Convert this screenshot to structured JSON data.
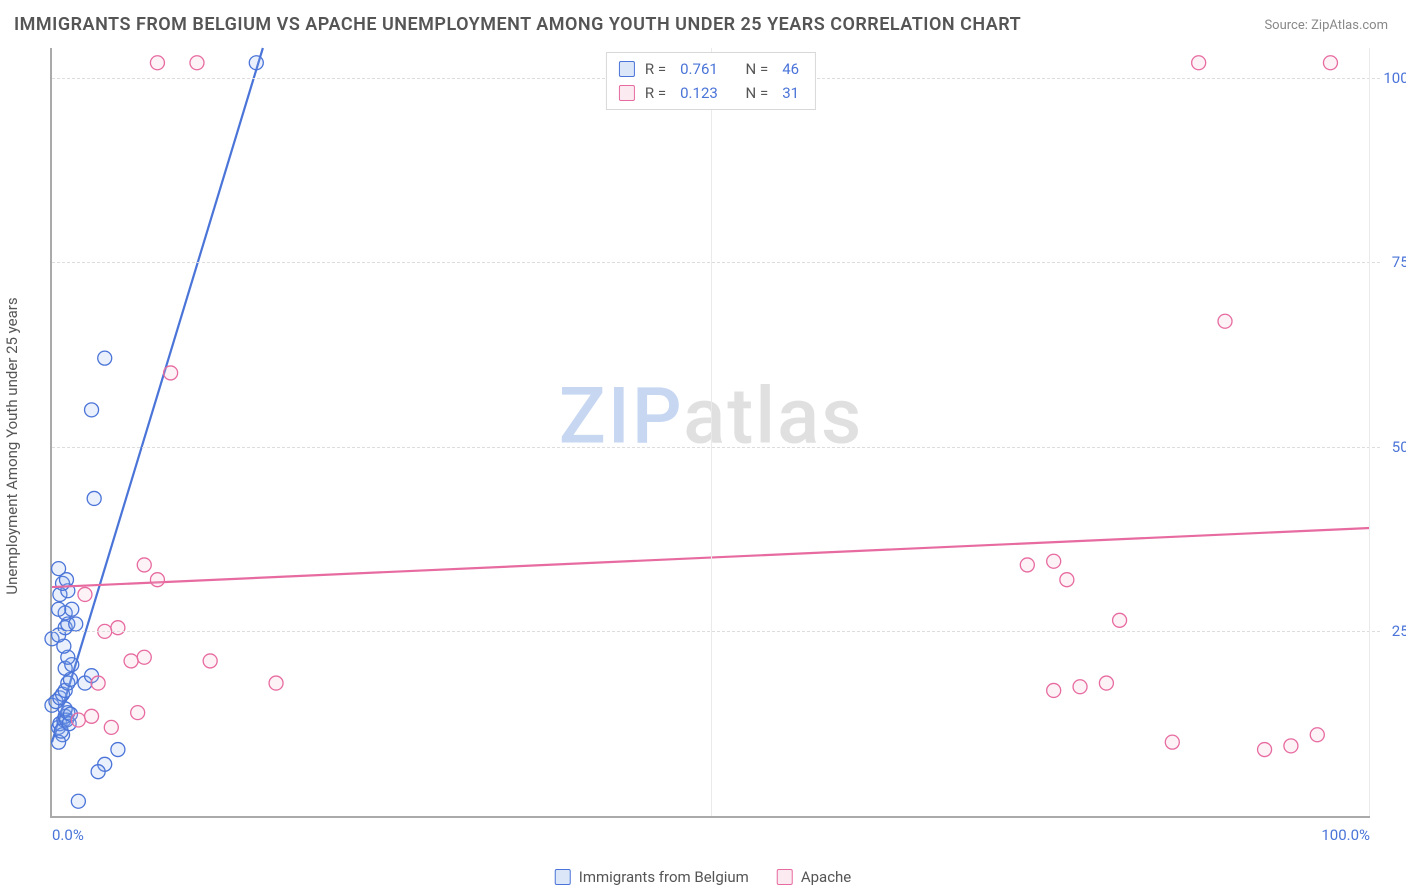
{
  "title": "IMMIGRANTS FROM BELGIUM VS APACHE UNEMPLOYMENT AMONG YOUTH UNDER 25 YEARS CORRELATION CHART",
  "source_label": "Source:",
  "source_value": "ZipAtlas.com",
  "y_axis_label": "Unemployment Among Youth under 25 years",
  "watermark": {
    "part1": "ZIP",
    "part2": "atlas"
  },
  "chart": {
    "type": "scatter",
    "xlim": [
      0,
      100
    ],
    "ylim": [
      0,
      104
    ],
    "x_tick_min_label": "0.0%",
    "x_tick_max_label": "100.0%",
    "y_ticks": [
      {
        "v": 25,
        "label": "25.0%"
      },
      {
        "v": 50,
        "label": "50.0%"
      },
      {
        "v": 75,
        "label": "75.0%"
      },
      {
        "v": 100,
        "label": "100.0%"
      }
    ],
    "x_gridline": 50,
    "background_color": "#ffffff",
    "grid_color": "#e6e6e6",
    "axis_color": "#aaaaaa",
    "tick_label_color": "#4a74d8",
    "marker_radius": 7,
    "marker_stroke_width": 1.3,
    "marker_fill_opacity": 0.18,
    "trend_line_width": 2.2,
    "series": [
      {
        "id": "belgium",
        "label": "Immigrants from Belgium",
        "color_stroke": "#4a74d8",
        "color_fill": "#8fb0ec",
        "R": "0.761",
        "N": "46",
        "trend": {
          "x1": 0,
          "y1": 10,
          "x2": 16,
          "y2": 104
        },
        "points": [
          [
            0.5,
            12
          ],
          [
            0.6,
            12.5
          ],
          [
            0.8,
            11
          ],
          [
            0.9,
            13
          ],
          [
            1.0,
            13.5
          ],
          [
            1.1,
            13
          ],
          [
            1.2,
            14
          ],
          [
            1.0,
            14.5
          ],
          [
            0.5,
            10
          ],
          [
            0.7,
            11.5
          ],
          [
            1.3,
            12.5
          ],
          [
            1.4,
            13.8
          ],
          [
            0,
            15
          ],
          [
            0.3,
            15.5
          ],
          [
            0.6,
            16
          ],
          [
            0.8,
            16.5
          ],
          [
            1.0,
            17
          ],
          [
            1.2,
            18
          ],
          [
            1.4,
            18.5
          ],
          [
            1.0,
            20
          ],
          [
            1.5,
            20.5
          ],
          [
            1.2,
            21.5
          ],
          [
            0.9,
            23
          ],
          [
            0,
            24
          ],
          [
            0.5,
            24.5
          ],
          [
            1.0,
            25.5
          ],
          [
            1.2,
            26
          ],
          [
            1.0,
            27.5
          ],
          [
            1.5,
            28
          ],
          [
            0.6,
            30
          ],
          [
            1.2,
            30.5
          ],
          [
            0.8,
            31.5
          ],
          [
            1.1,
            32
          ],
          [
            0.5,
            33.5
          ],
          [
            2.5,
            18
          ],
          [
            3.0,
            19
          ],
          [
            4.0,
            7
          ],
          [
            5.0,
            9
          ],
          [
            3.2,
            43
          ],
          [
            3.0,
            55
          ],
          [
            4.0,
            62
          ],
          [
            2.0,
            2
          ],
          [
            3.5,
            6
          ],
          [
            15.5,
            102
          ],
          [
            0.5,
            28
          ],
          [
            1.8,
            26
          ]
        ]
      },
      {
        "id": "apache",
        "label": "Apache",
        "color_stroke": "#e76ba0",
        "color_fill": "#f4bcd2",
        "R": "0.123",
        "N": "31",
        "trend": {
          "x1": 0,
          "y1": 31,
          "x2": 100,
          "y2": 39
        },
        "points": [
          [
            2,
            13
          ],
          [
            3,
            13.5
          ],
          [
            4,
            25
          ],
          [
            5,
            25.5
          ],
          [
            6,
            21
          ],
          [
            7,
            21.5
          ],
          [
            7,
            34
          ],
          [
            8,
            32
          ],
          [
            9,
            60
          ],
          [
            12,
            21
          ],
          [
            17,
            18
          ],
          [
            8,
            102
          ],
          [
            11,
            102
          ],
          [
            74,
            34
          ],
          [
            76,
            34.5
          ],
          [
            77,
            32
          ],
          [
            76,
            17
          ],
          [
            78,
            17.5
          ],
          [
            80,
            18
          ],
          [
            81,
            26.5
          ],
          [
            85,
            10
          ],
          [
            87,
            102
          ],
          [
            89,
            67
          ],
          [
            92,
            9
          ],
          [
            94,
            9.5
          ],
          [
            96,
            11
          ],
          [
            97,
            102
          ],
          [
            2.5,
            30
          ],
          [
            3.5,
            18
          ],
          [
            4.5,
            12
          ],
          [
            6.5,
            14
          ]
        ]
      }
    ]
  },
  "legend": {
    "series1_label": "Immigrants from Belgium",
    "series2_label": "Apache"
  },
  "stats_box": {
    "r_label": "R =",
    "n_label": "N ="
  }
}
